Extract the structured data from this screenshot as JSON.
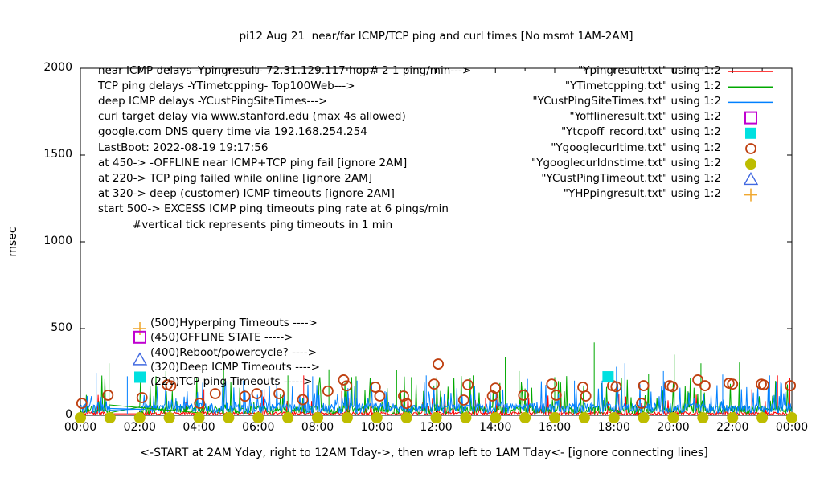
{
  "title": "pi12 Aug 21  near/far ICMP/TCP ping and curl times [No msmt 1AM-2AM]",
  "y_axis": {
    "label": "msec",
    "ticks": [
      "0",
      "500",
      "1000",
      "1500",
      "2000"
    ],
    "max": 2000
  },
  "x_axis": {
    "label": "<-START at 2AM Yday, right to 12AM Tday->, then wrap left to 1AM Tday<- [ignore connecting lines]",
    "ticks": [
      "00:00",
      "02:00",
      "04:00",
      "06:00",
      "08:00",
      "10:00",
      "12:00",
      "14:00",
      "16:00",
      "18:00",
      "20:00",
      "22:00",
      "00:00"
    ],
    "minor_tick_every_hours": 1
  },
  "info_lines": [
    "near ICMP delays -Ypingresult- 72.31.129.117 hop# 2 1 ping/min--->",
    "TCP ping delays -YTimetcpping- Top100Web--->",
    "deep ICMP delays -YCustPingSiteTimes--->",
    "curl target delay via www.stanford.edu (max 4s allowed)",
    "google.com DNS query time via 192.168.254.254",
    "LastBoot: 2022-08-19 19:17:56",
    "at 450-> -OFFLINE near ICMP+TCP ping fail [ignore 2AM]",
    "at 220-> TCP ping failed while online [ignore 2AM]",
    "at 320-> deep (customer) ICMP timeouts [ignore 2AM]",
    "start 500-> EXCESS ICMP ping timeouts ping rate at 6 pings/min",
    "          #vertical tick represents ping timeouts in 1 min"
  ],
  "legend": [
    {
      "label": "\"Ypingresult.txt\" using 1:2",
      "marker": "line",
      "color": "#ff0000"
    },
    {
      "label": "\"YTimetcpping.txt\" using 1:2",
      "marker": "line",
      "color": "#00a800"
    },
    {
      "label": "\"YCustPingSiteTimes.txt\" using 1:2",
      "marker": "line",
      "color": "#0080ff"
    },
    {
      "label": "\"Yofflineresult.txt\" using 1:2",
      "marker": "open-square",
      "color": "#c000d0"
    },
    {
      "label": "\"Ytcpoff_record.txt\" using 1:2",
      "marker": "filled-square",
      "color": "#00e0e0"
    },
    {
      "label": "\"Ygooglecurltime.txt\" using 1:2",
      "marker": "open-circle",
      "color": "#bf4010"
    },
    {
      "label": "\"Ygooglecurldnstime.txt\" using 1:2",
      "marker": "filled-circle",
      "color": "#bdbd00"
    },
    {
      "label": "\"YCustPingTimeout.txt\" using 1:2",
      "marker": "open-triangle",
      "color": "#4169e1"
    },
    {
      "label": "\"YHPpingresult.txt\" using 1:2",
      "marker": "plus",
      "color": "#f0a830"
    }
  ],
  "annotations": [
    {
      "value": 500,
      "marker": "plus",
      "color": "#f0a830",
      "label": "(500)Hyperping Timeouts ---->"
    },
    {
      "value": 450,
      "marker": "open-square",
      "color": "#c000d0",
      "label": "(450)OFFLINE STATE ----->"
    },
    {
      "value": 400,
      "marker": "none",
      "color": "",
      "label": "(400)Reboot/powercycle? ---->"
    },
    {
      "value": 320,
      "marker": "open-triangle",
      "color": "#4169e1",
      "label": "(320)Deep ICMP Timeouts ---->"
    },
    {
      "value": 220,
      "marker": "filled-square",
      "color": "#00e0e0",
      "label": "(220)TCP ping Timeouts ----->"
    }
  ],
  "chart_data": {
    "type": "line+scatter",
    "x_range_minutes": [
      0,
      1440
    ],
    "gap_minutes": [
      60,
      120
    ],
    "ylim": [
      0,
      2000
    ],
    "noise_seed": 20220821,
    "series": [
      {
        "name": "near ICMP delays",
        "file": "Ypingresult.txt",
        "color": "#ff0000",
        "baseline": [
          3,
          20
        ],
        "spike_chance": 0.05,
        "spike_range": [
          25,
          120
        ],
        "notable_spikes": [
          [
            250,
            150
          ],
          [
            372,
            150
          ],
          [
            452,
            230
          ],
          [
            529,
            140
          ],
          [
            680,
            120
          ],
          [
            820,
            100
          ],
          [
            1090,
            120
          ],
          [
            1359,
            150
          ],
          [
            1411,
            230
          ],
          [
            1436,
            215
          ]
        ]
      },
      {
        "name": "TCP ping delays",
        "file": "YTimetcpping.txt",
        "color": "#00a800",
        "baseline": [
          8,
          55
        ],
        "spike_chance": 0.1,
        "spike_range": [
          60,
          230
        ],
        "notable_spikes": [
          [
            58,
            300
          ],
          [
            173,
            255
          ],
          [
            290,
            310
          ],
          [
            420,
            230
          ],
          [
            503,
            265
          ],
          [
            558,
            225
          ],
          [
            640,
            260
          ],
          [
            670,
            220
          ],
          [
            795,
            230
          ],
          [
            860,
            335
          ],
          [
            888,
            255
          ],
          [
            960,
            220
          ],
          [
            1040,
            420
          ],
          [
            1150,
            240
          ],
          [
            1202,
            350
          ],
          [
            1256,
            300
          ],
          [
            1334,
            305
          ]
        ]
      },
      {
        "name": "deep ICMP delays",
        "file": "YCustPingSiteTimes.txt",
        "color": "#0080ff",
        "baseline": [
          12,
          70
        ],
        "spike_chance": 0.13,
        "spike_range": [
          60,
          200
        ],
        "notable_spikes": [
          [
            32,
            245
          ],
          [
            95,
            225
          ],
          [
            240,
            220
          ],
          [
            330,
            200
          ],
          [
            470,
            225
          ],
          [
            560,
            200
          ],
          [
            700,
            230
          ],
          [
            905,
            210
          ],
          [
            1000,
            200
          ],
          [
            1085,
            280
          ],
          [
            1102,
            300
          ],
          [
            1180,
            255
          ],
          [
            1300,
            235
          ],
          [
            1395,
            230
          ]
        ]
      }
    ],
    "extra_connectors": [
      {
        "color": "#00a800",
        "from": [
          58,
          60
        ],
        "to": [
          238,
          15
        ]
      },
      {
        "color": "#0080ff",
        "from": [
          58,
          40
        ],
        "to": [
          130,
          35
        ]
      }
    ],
    "scatter": [
      {
        "name": "google curl time",
        "file": "Ygooglecurltime.txt",
        "marker": "open-circle",
        "color": "#bf4010",
        "points": [
          [
            0.05,
            69
          ],
          [
            0.93,
            116
          ],
          [
            2.08,
            102
          ],
          [
            2.93,
            176
          ],
          [
            3.05,
            170
          ],
          [
            4.02,
            69
          ],
          [
            4.55,
            125
          ],
          [
            5.55,
            110
          ],
          [
            5.95,
            125
          ],
          [
            6.7,
            125
          ],
          [
            7.5,
            90
          ],
          [
            8.35,
            140
          ],
          [
            8.88,
            204
          ],
          [
            8.98,
            170
          ],
          [
            9.95,
            162
          ],
          [
            10.1,
            111
          ],
          [
            10.9,
            111
          ],
          [
            11.0,
            69
          ],
          [
            11.93,
            180
          ],
          [
            12.07,
            296
          ],
          [
            12.93,
            88
          ],
          [
            13.07,
            176
          ],
          [
            13.9,
            111
          ],
          [
            14.0,
            157
          ],
          [
            14.95,
            116
          ],
          [
            15.9,
            180
          ],
          [
            16.05,
            116
          ],
          [
            16.95,
            162
          ],
          [
            17.05,
            111
          ],
          [
            17.95,
            171
          ],
          [
            18.07,
            165
          ],
          [
            18.93,
            69
          ],
          [
            19.0,
            171
          ],
          [
            19.88,
            171
          ],
          [
            19.97,
            165
          ],
          [
            20.83,
            204
          ],
          [
            21.07,
            171
          ],
          [
            21.88,
            185
          ],
          [
            22.0,
            180
          ],
          [
            22.97,
            180
          ],
          [
            23.05,
            175
          ],
          [
            23.95,
            171
          ]
        ]
      },
      {
        "name": "google DNS query time",
        "file": "Ygooglecurldnstime.txt",
        "marker": "filled-circle",
        "color": "#bdbd00",
        "points": [
          [
            0,
            0
          ],
          [
            1,
            0
          ],
          [
            2,
            0
          ],
          [
            3,
            0
          ],
          [
            4,
            0
          ],
          [
            5,
            0
          ],
          [
            6,
            0
          ],
          [
            7,
            0
          ],
          [
            8,
            0
          ],
          [
            9,
            0
          ],
          [
            10,
            0
          ],
          [
            11,
            0
          ],
          [
            12,
            0
          ],
          [
            13,
            0
          ],
          [
            14,
            0
          ],
          [
            15,
            0
          ],
          [
            16,
            0
          ],
          [
            17,
            0
          ],
          [
            18,
            0
          ],
          [
            19,
            0
          ],
          [
            20,
            0
          ],
          [
            21,
            0
          ],
          [
            22,
            0
          ],
          [
            23,
            0
          ],
          [
            24,
            0
          ]
        ]
      },
      {
        "name": "TCP ping failed while online",
        "file": "Ytcpoff_record.txt",
        "marker": "filled-square",
        "color": "#00e0e0",
        "points": [
          [
            17.8,
            222
          ]
        ]
      }
    ]
  }
}
